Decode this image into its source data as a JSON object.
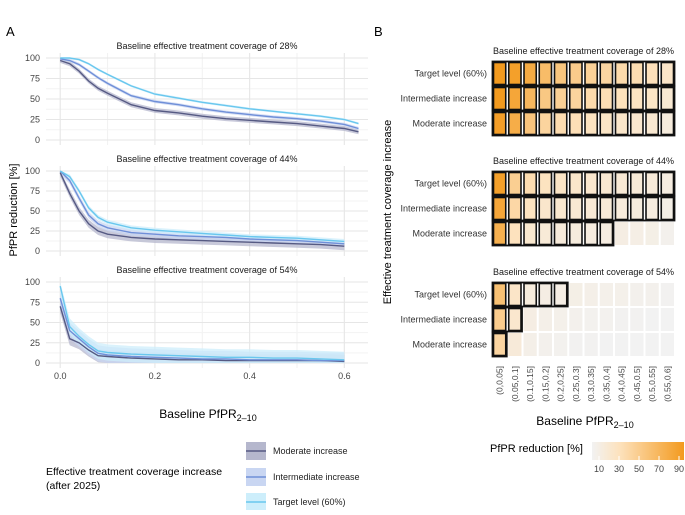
{
  "panel_a": {
    "label": "A"
  },
  "panel_b": {
    "label": "B"
  },
  "chart_data": [
    {
      "type": "line",
      "panel": "A",
      "xlabel_prefix": "Baseline PfPR",
      "xlabel_sub": "2–10",
      "ylabel": "PfPR reduction [%]",
      "xlim": [
        -0.03,
        0.65
      ],
      "ylim": [
        0,
        100
      ],
      "x_ticks": [
        0.0,
        0.2,
        0.4,
        0.6
      ],
      "x_tick_labels": [
        "0.0",
        "0.2",
        "0.4",
        "0.6"
      ],
      "y_ticks": [
        0,
        25,
        50,
        75,
        100
      ],
      "y_tick_labels": [
        "0",
        "25",
        "50",
        "75",
        "100"
      ],
      "legend": {
        "title_line1": "Effective treatment coverage increase",
        "title_line2": "(after 2025)",
        "entries": [
          "Moderate increase",
          "Intermediate increase",
          "Target level (60%)"
        ]
      },
      "series_colors": {
        "moderate": "#565a83",
        "intermediate": "#6f8fd8",
        "target": "#69c7ee"
      },
      "series_fills": {
        "moderate": "#b5b7cd",
        "intermediate": "#c9d6f2",
        "target": "#cdeefb"
      },
      "facets": [
        {
          "title": "Baseline effective treatment coverage of 28%",
          "x": [
            0.0,
            0.02,
            0.04,
            0.06,
            0.08,
            0.1,
            0.15,
            0.2,
            0.25,
            0.3,
            0.35,
            0.4,
            0.45,
            0.5,
            0.55,
            0.6,
            0.63
          ],
          "series": [
            {
              "name": "Moderate increase",
              "key": "moderate",
              "values": [
                97,
                93,
                84,
                72,
                63,
                57,
                43,
                36,
                33,
                29,
                26,
                24,
                22,
                20,
                17,
                14,
                10
              ],
              "band": 3
            },
            {
              "name": "Intermediate increase",
              "key": "intermediate",
              "values": [
                99,
                97,
                92,
                84,
                76,
                69,
                54,
                47,
                43,
                38,
                34,
                31,
                28,
                26,
                23,
                19,
                14
              ],
              "band": 2
            },
            {
              "name": "Target level (60%)",
              "key": "target",
              "values": [
                100,
                100,
                98,
                93,
                86,
                80,
                66,
                56,
                51,
                46,
                42,
                38,
                35,
                32,
                29,
                25,
                20
              ],
              "band": 1.5
            }
          ]
        },
        {
          "title": "Baseline effective treatment coverage of 44%",
          "x": [
            0.0,
            0.02,
            0.04,
            0.06,
            0.08,
            0.1,
            0.15,
            0.2,
            0.25,
            0.3,
            0.35,
            0.4,
            0.45,
            0.5,
            0.55,
            0.6
          ],
          "series": [
            {
              "name": "Moderate increase",
              "key": "moderate",
              "values": [
                98,
                72,
                50,
                34,
                25,
                21,
                17,
                15,
                14,
                13,
                12,
                11,
                10,
                9,
                8,
                6
              ],
              "band": 5
            },
            {
              "name": "Intermediate increase",
              "key": "intermediate",
              "values": [
                100,
                88,
                66,
                45,
                34,
                29,
                23,
                21,
                19,
                18,
                17,
                15,
                14,
                13,
                11,
                9
              ],
              "band": 4
            },
            {
              "name": "Target level (60%)",
              "key": "target",
              "values": [
                100,
                93,
                75,
                54,
                42,
                36,
                29,
                26,
                24,
                22,
                20,
                18,
                17,
                16,
                14,
                12
              ],
              "band": 3
            }
          ]
        },
        {
          "title": "Baseline effective treatment coverage of 54%",
          "x": [
            0.0,
            0.02,
            0.04,
            0.06,
            0.08,
            0.1,
            0.15,
            0.2,
            0.25,
            0.3,
            0.35,
            0.4,
            0.45,
            0.5,
            0.55,
            0.6
          ],
          "series": [
            {
              "name": "Moderate increase",
              "key": "moderate",
              "values": [
                70,
                30,
                25,
                16,
                9,
                8,
                6,
                5,
                4,
                4,
                3,
                3,
                3,
                3,
                3,
                2
              ],
              "band": 8
            },
            {
              "name": "Intermediate increase",
              "key": "intermediate",
              "values": [
                80,
                40,
                30,
                20,
                12,
                10,
                8,
                7,
                6,
                5,
                5,
                4,
                4,
                4,
                3,
                3
              ],
              "band": 10
            },
            {
              "name": "Target level (60%)",
              "key": "target",
              "values": [
                95,
                45,
                33,
                23,
                15,
                13,
                11,
                10,
                9,
                8,
                7,
                7,
                6,
                6,
                5,
                4
              ],
              "band": 10
            }
          ]
        }
      ]
    },
    {
      "type": "heatmap",
      "panel": "B",
      "xlabel_prefix": "Baseline PfPR",
      "xlabel_sub": "2–10",
      "ylabel": "Effective treatment coverage increase",
      "x_categories": [
        "(0,0.05]",
        "(0.05,0.1]",
        "(0.1,0.15]",
        "(0.15,0.2]",
        "(0.2,0.25]",
        "(0.25,0.3]",
        "(0.3,0.35]",
        "(0.35,0.4]",
        "(0.4,0.45]",
        "(0.45,0.5]",
        "(0.5,0.55]",
        "(0.55,0.6]"
      ],
      "rows": [
        "Target level (60%)",
        "Intermediate increase",
        "Moderate increase"
      ],
      "color_scale": {
        "title": "PfPR reduction [%]",
        "ticks": [
          10,
          30,
          50,
          70,
          90
        ],
        "tick_labels": [
          "10",
          "30",
          "50",
          "70",
          "90"
        ],
        "min": 3,
        "max": 95,
        "low_color": "#f2f2f2",
        "mid_color": "#fde2bd",
        "high_color": "#f39a1e"
      },
      "facets": [
        {
          "title": "Baseline effective treatment coverage of 28%",
          "values": [
            [
              97,
              90,
              80,
              65,
              56,
              51,
              46,
              42,
              38,
              35,
              32,
              25
            ],
            [
              95,
              84,
              69,
              54,
              47,
              43,
              38,
              34,
              31,
              28,
              26,
              19
            ],
            [
              91,
              78,
              57,
              43,
              36,
              33,
              29,
              26,
              24,
              22,
              20,
              14
            ]
          ],
          "outlined": [
            12,
            12,
            12
          ]
        },
        {
          "title": "Baseline effective treatment coverage of 44%",
          "values": [
            [
              90,
              48,
              36,
              29,
              26,
              24,
              22,
              20,
              18,
              17,
              16,
              12
            ],
            [
              84,
              40,
              29,
              23,
              21,
              19,
              18,
              17,
              15,
              14,
              13,
              9
            ],
            [
              75,
              30,
              21,
              17,
              15,
              14,
              13,
              12,
              11,
              10,
              9,
              6
            ]
          ],
          "outlined": [
            12,
            12,
            8
          ]
        },
        {
          "title": "Baseline effective treatment coverage of 54%",
          "values": [
            [
              60,
              25,
              14,
              11,
              10,
              9,
              8,
              7,
              7,
              6,
              6,
              4
            ],
            [
              50,
              22,
              11,
              8,
              7,
              6,
              5,
              5,
              4,
              4,
              3,
              3
            ],
            [
              42,
              16,
              8,
              6,
              5,
              4,
              4,
              3,
              3,
              3,
              3,
              2
            ]
          ],
          "outlined": [
            5,
            2,
            1
          ]
        }
      ]
    }
  ]
}
